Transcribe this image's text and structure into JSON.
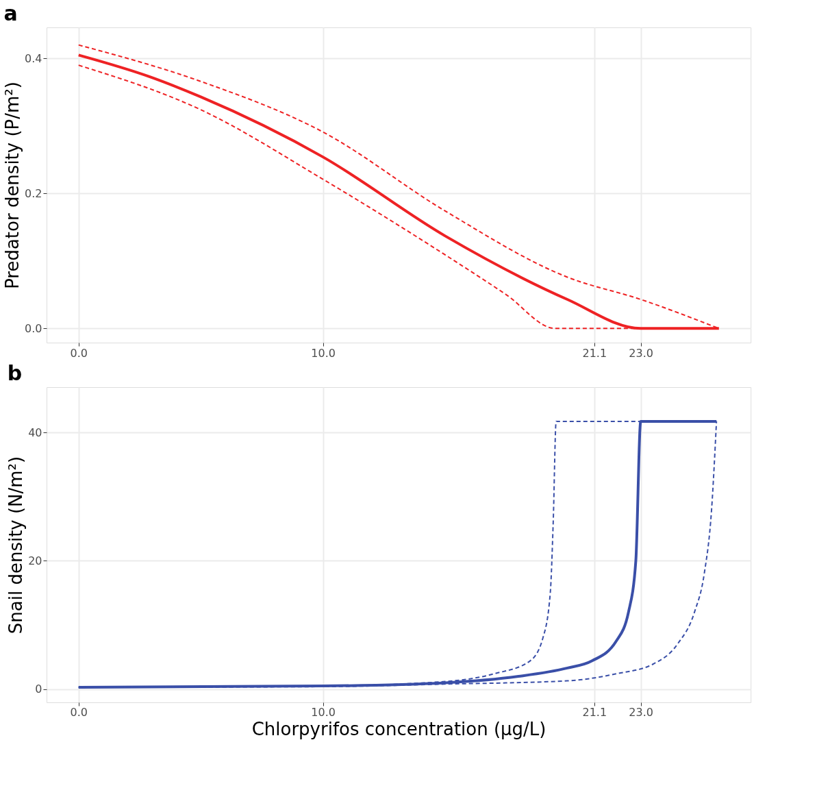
{
  "chart_data": [
    {
      "type": "line",
      "title": "a",
      "ylabel": "Predator density (P/m²)",
      "xlim": [
        -1.31,
        27.5
      ],
      "ylim": [
        -0.021,
        0.446
      ],
      "xticks": [
        {
          "value": 0,
          "label": "0.0"
        },
        {
          "value": 10,
          "label": "10.0"
        },
        {
          "value": 21.1,
          "label": "21.1"
        },
        {
          "value": 23,
          "label": "23.0"
        }
      ],
      "yticks": [
        {
          "value": 0,
          "label": "0.0"
        },
        {
          "value": 0.2,
          "label": "0.2"
        },
        {
          "value": 0.4,
          "label": "0.4"
        }
      ],
      "grid": true,
      "series": [
        {
          "color": "#ee2224",
          "line_style": "solid",
          "x": [
            0,
            2.9,
            5,
            10,
            15,
            20,
            23,
            26.2
          ],
          "values": [
            0.405,
            0.373,
            0.343,
            0.254,
            0.137,
            0.043,
            0,
            0
          ]
        },
        {
          "color": "#ee2224",
          "line_style": "dashed",
          "x": [
            0,
            5,
            10,
            15,
            20,
            23,
            26.2
          ],
          "values": [
            0.42,
            0.366,
            0.291,
            0.174,
            0.076,
            0.043,
            0
          ]
        },
        {
          "color": "#ee2224",
          "line_style": "dashed",
          "x": [
            0,
            5,
            10,
            15,
            17.5,
            19.5,
            23
          ],
          "values": [
            0.39,
            0.324,
            0.221,
            0.109,
            0.05,
            0,
            0
          ]
        }
      ]
    },
    {
      "type": "line",
      "title": "b",
      "xlabel": "Chlorpyrifos concentration (µg/L)",
      "ylabel": "Snail density (N/m²)",
      "xlim": [
        -1.31,
        27.5
      ],
      "ylim": [
        -2.05,
        47.05
      ],
      "xticks": [
        {
          "value": 0,
          "label": "0.0"
        },
        {
          "value": 10,
          "label": "10.0"
        },
        {
          "value": 21.1,
          "label": "21.1"
        },
        {
          "value": 23,
          "label": "23.0"
        }
      ],
      "yticks": [
        0,
        20,
        40
      ],
      "grid": true,
      "series": [
        {
          "color": "#3a4fa8",
          "line_style": "solid",
          "x": [
            0,
            10,
            15,
            18,
            20,
            21,
            22,
            22.5,
            22.8,
            23,
            26.1
          ],
          "values": [
            0.3,
            0.5,
            1.0,
            2.0,
            3.3,
            4.4,
            7.5,
            12,
            20,
            41.7,
            41.7
          ]
        },
        {
          "color": "#3a4fa8",
          "line_style": "dashed",
          "x": [
            0,
            10,
            15,
            17,
            18.47,
            19,
            19.3,
            19.42,
            19.54,
            26.1
          ],
          "values": [
            0.3,
            0.5,
            1.2,
            2.4,
            4.4,
            8,
            15,
            26,
            41.7,
            41.7
          ]
        },
        {
          "color": "#3a4fa8",
          "line_style": "dashed",
          "x": [
            0,
            10,
            15,
            20,
            22,
            23.5,
            24.5,
            25.2,
            25.6,
            25.9,
            26.1
          ],
          "values": [
            0.3,
            0.4,
            0.8,
            1.3,
            2.4,
            3.9,
            7,
            12,
            18,
            28,
            41.7
          ]
        }
      ]
    }
  ]
}
